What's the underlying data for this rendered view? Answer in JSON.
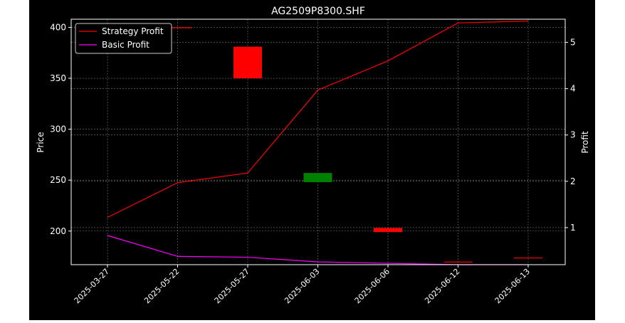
{
  "chart_data": {
    "type": "candlestick+line",
    "title": "AG2509P8300.SHF",
    "xlabel": "",
    "ylabel": "Price",
    "ylabel_right": "Profit",
    "categories": [
      "2025-03-27",
      "2025-05-22",
      "2025-05-27",
      "2025-06-03",
      "2025-06-06",
      "2025-06-12",
      "2025-06-13"
    ],
    "ylim": [
      167,
      408
    ],
    "y_ticks": [
      200,
      250,
      300,
      350,
      400
    ],
    "ylim_right": [
      0.2,
      5.5
    ],
    "y_ticks_right": [
      1,
      2,
      3,
      4,
      5
    ],
    "grid": true,
    "legend_position": "top-left",
    "candles": [
      {
        "date": "2025-03-27",
        "open": 400,
        "close": 400,
        "high": 400,
        "low": 400,
        "color": "#ff0000"
      },
      {
        "date": "2025-05-22",
        "open": 400,
        "close": 400,
        "high": 400,
        "low": 400,
        "color": "#ff0000"
      },
      {
        "date": "2025-05-27",
        "open": 381,
        "close": 350,
        "high": 381,
        "low": 350,
        "color": "#ff0000"
      },
      {
        "date": "2025-06-03",
        "open": 248,
        "close": 257,
        "high": 257,
        "low": 248,
        "color": "#008000"
      },
      {
        "date": "2025-06-06",
        "open": 203,
        "close": 199,
        "high": 203,
        "low": 199,
        "color": "#ff0000"
      },
      {
        "date": "2025-06-12",
        "open": 170,
        "close": 170,
        "high": 170,
        "low": 170,
        "color": "#ff0000"
      },
      {
        "date": "2025-06-13",
        "open": 174,
        "close": 174,
        "high": 174,
        "low": 174,
        "color": "#ff0000"
      }
    ],
    "series": [
      {
        "name": "Strategy Profit",
        "axis": "right",
        "color": "#ff0000",
        "values": [
          1.22,
          1.97,
          2.18,
          3.97,
          4.6,
          5.42,
          5.46
        ]
      },
      {
        "name": "Basic Profit",
        "axis": "right",
        "color": "#ff00ff",
        "values": [
          0.83,
          0.38,
          0.36,
          0.26,
          0.23,
          0.2,
          0.2
        ]
      }
    ]
  }
}
